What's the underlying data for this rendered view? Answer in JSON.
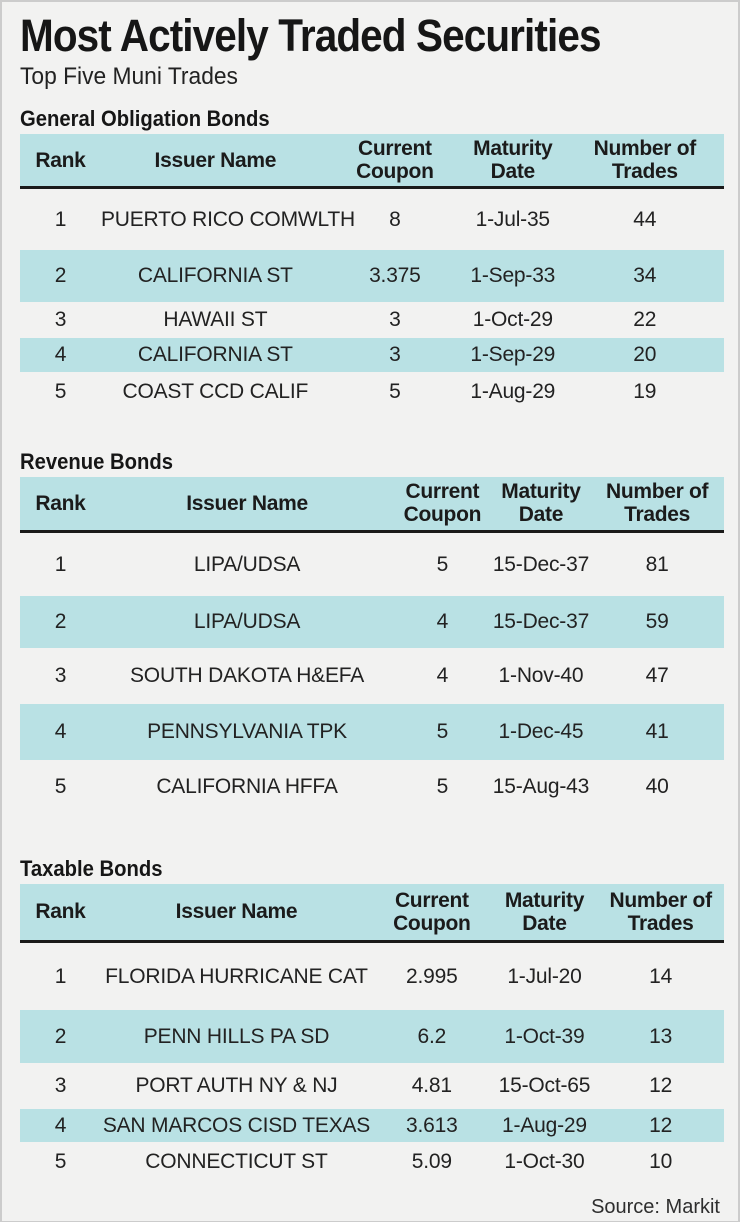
{
  "title": "Most Actively Traded Securities",
  "subtitle": "Top Five Muni Trades",
  "source_label": "Source: Markit",
  "colors": {
    "panel_background": "#f2f2f1",
    "table_accent_teal": "#b9e1e4",
    "header_rule": "#1a1a1a",
    "text": "#1d1d1d",
    "panel_border": "#cccccc"
  },
  "chart_data": [
    {
      "type": "table",
      "title": "General Obligation Bonds",
      "columns": [
        "Rank",
        "Issuer Name",
        "Current Coupon",
        "Maturity Date",
        "Number of Trades"
      ],
      "rows": [
        [
          "1",
          "PUERTO RICO COMWLTH",
          "8",
          "1-Jul-35",
          "44"
        ],
        [
          "2",
          "CALIFORNIA ST",
          "3.375",
          "1-Sep-33",
          "34"
        ],
        [
          "3",
          "HAWAII ST",
          "3",
          "1-Oct-29",
          "22"
        ],
        [
          "4",
          "CALIFORNIA ST",
          "3",
          "1-Sep-29",
          "20"
        ],
        [
          "5",
          "COAST CCD CALIF",
          "5",
          "1-Aug-29",
          "19"
        ]
      ]
    },
    {
      "type": "table",
      "title": "Revenue Bonds",
      "columns": [
        "Rank",
        "Issuer Name",
        "Current Coupon",
        "Maturity Date",
        "Number of Trades"
      ],
      "rows": [
        [
          "1",
          "LIPA/UDSA",
          "5",
          "15-Dec-37",
          "81"
        ],
        [
          "2",
          "LIPA/UDSA",
          "4",
          "15-Dec-37",
          "59"
        ],
        [
          "3",
          "SOUTH DAKOTA H&EFA",
          "4",
          "1-Nov-40",
          "47"
        ],
        [
          "4",
          "PENNSYLVANIA TPK",
          "5",
          "1-Dec-45",
          "41"
        ],
        [
          "5",
          "CALIFORNIA HFFA",
          "5",
          "15-Aug-43",
          "40"
        ]
      ]
    },
    {
      "type": "table",
      "title": "Taxable Bonds",
      "columns": [
        "Rank",
        "Issuer Name",
        "Current Coupon",
        "Maturity Date",
        "Number of Trades"
      ],
      "rows": [
        [
          "1",
          "FLORIDA HURRICANE CAT",
          "2.995",
          "1-Jul-20",
          "14"
        ],
        [
          "2",
          "PENN HILLS PA SD",
          "6.2",
          "1-Oct-39",
          "13"
        ],
        [
          "3",
          "PORT AUTH NY & NJ",
          "4.81",
          "15-Oct-65",
          "12"
        ],
        [
          "4",
          "SAN MARCOS CISD TEXAS",
          "3.613",
          "1-Aug-29",
          "12"
        ],
        [
          "5",
          "CONNECTICUT ST",
          "5.09",
          "1-Oct-30",
          "10"
        ]
      ]
    }
  ]
}
